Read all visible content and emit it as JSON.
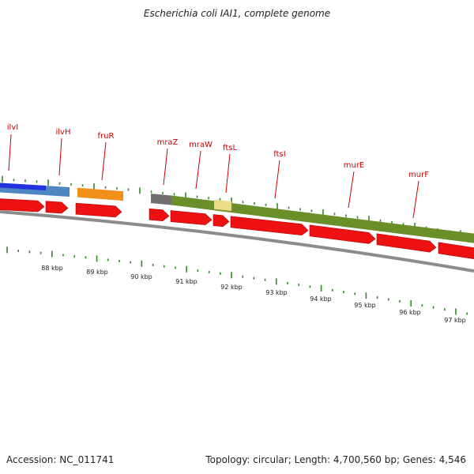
{
  "title": "Escherichia coli IAI1, complete genome",
  "footer": {
    "accession_label": "Accession:",
    "accession": "NC_011741",
    "topology_label": "Topology:",
    "topology": "circular",
    "length_label": "Length:",
    "length": "4,700,560 bp",
    "genes_label": "Genes:",
    "genes": "4,546"
  },
  "colors": {
    "gene_arrow": "#ee1111",
    "gene_label": "#cc0000",
    "tick": "#2e8b22",
    "backbone": "#8c8c8c",
    "ilv_operon": "#2233dd",
    "ilv_light": "#4e86c2",
    "fru_operon": "#f09018",
    "mra_start": "#707070",
    "mra_operon": "#6a8e28",
    "ftsL_highlight": "#eadc88"
  },
  "scale_labels": [
    "88 kbp",
    "89 kbp",
    "90 kbp",
    "91 kbp",
    "92 kbp",
    "93 kbp",
    "94 kbp",
    "95 kbp",
    "96 kbp",
    "97 kbp"
  ],
  "gene_labels": [
    "ilvI",
    "ilvH",
    "fruR",
    "mraZ",
    "mraW",
    "ftsL",
    "ftsI",
    "murE",
    "murF"
  ]
}
